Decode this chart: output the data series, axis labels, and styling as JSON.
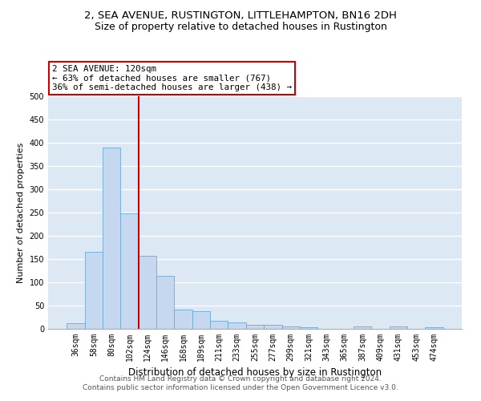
{
  "title": "2, SEA AVENUE, RUSTINGTON, LITTLEHAMPTON, BN16 2DH",
  "subtitle": "Size of property relative to detached houses in Rustington",
  "xlabel": "Distribution of detached houses by size in Rustington",
  "ylabel": "Number of detached properties",
  "bar_color": "#c5d8f0",
  "bar_edge_color": "#6aaad4",
  "background_color": "#dde8f5",
  "grid_color": "#ffffff",
  "vline_color": "#cc0000",
  "annotation_text": "2 SEA AVENUE: 120sqm\n← 63% of detached houses are smaller (767)\n36% of semi-detached houses are larger (438) →",
  "annotation_box_color": "#cc0000",
  "categories": [
    "36sqm",
    "58sqm",
    "80sqm",
    "102sqm",
    "124sqm",
    "146sqm",
    "168sqm",
    "189sqm",
    "211sqm",
    "233sqm",
    "255sqm",
    "277sqm",
    "299sqm",
    "321sqm",
    "343sqm",
    "365sqm",
    "387sqm",
    "409sqm",
    "431sqm",
    "453sqm",
    "474sqm"
  ],
  "values": [
    12,
    165,
    390,
    248,
    157,
    114,
    42,
    38,
    17,
    14,
    9,
    9,
    6,
    4,
    0,
    0,
    5,
    0,
    5,
    0,
    4
  ],
  "ylim": [
    0,
    500
  ],
  "yticks": [
    0,
    50,
    100,
    150,
    200,
    250,
    300,
    350,
    400,
    450,
    500
  ],
  "footer": "Contains HM Land Registry data © Crown copyright and database right 2024.\nContains public sector information licensed under the Open Government Licence v3.0.",
  "title_fontsize": 9.5,
  "subtitle_fontsize": 9,
  "xlabel_fontsize": 8.5,
  "ylabel_fontsize": 8,
  "tick_fontsize": 7,
  "footer_fontsize": 6.5
}
